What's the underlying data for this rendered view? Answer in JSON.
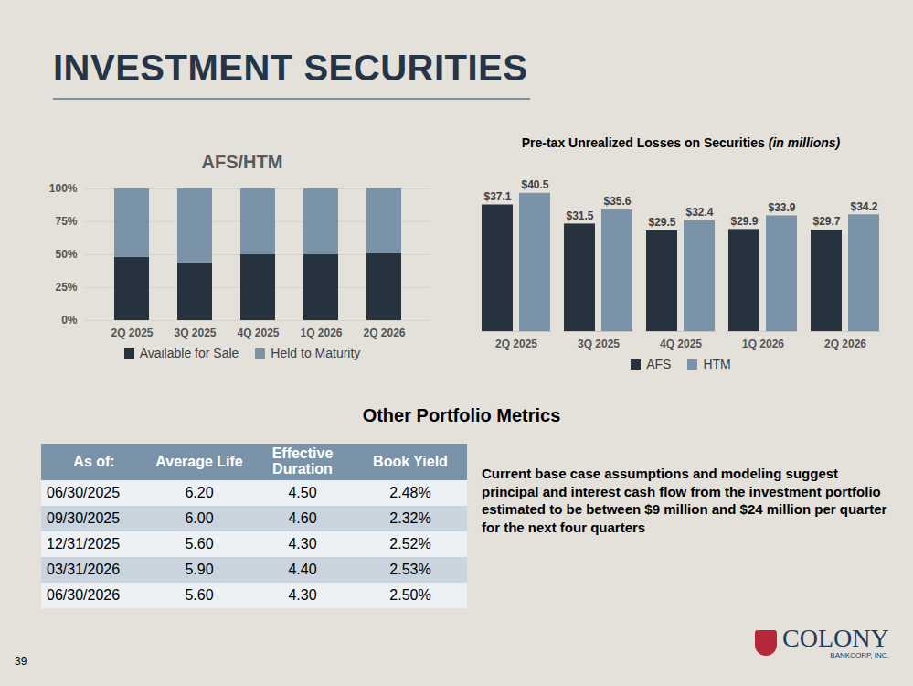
{
  "page": {
    "title": "INVESTMENT SECURITIES",
    "page_number": "39"
  },
  "chart_data": [
    {
      "type": "bar",
      "title": "AFS/HTM",
      "stacked": true,
      "grid": true,
      "legend": "bottom",
      "categories": [
        "2Q 2025",
        "3Q 2025",
        "4Q 2025",
        "1Q 2026",
        "2Q 2026"
      ],
      "series": [
        {
          "name": "Available for Sale",
          "color": "#26333f",
          "values": [
            48,
            44,
            50,
            50,
            51
          ]
        },
        {
          "name": "Held to Maturity",
          "color": "#7b93a8",
          "values": [
            52,
            56,
            50,
            50,
            49
          ]
        }
      ],
      "ylim": [
        0,
        100
      ],
      "yticks": [
        {
          "value": 0,
          "label": "0%"
        },
        {
          "value": 25,
          "label": "25%"
        },
        {
          "value": 50,
          "label": "50%"
        },
        {
          "value": 75,
          "label": "75%"
        },
        {
          "value": 100,
          "label": "100%"
        }
      ]
    },
    {
      "type": "bar",
      "title": "Pre-tax Unrealized Losses on Securities",
      "subtitle": "(in millions)",
      "legend": "bottom",
      "data_labels": true,
      "tick_labels": "x",
      "categories": [
        "2Q 2025",
        "3Q 2025",
        "4Q 2025",
        "1Q 2026",
        "2Q 2026"
      ],
      "series": [
        {
          "name": "AFS",
          "color": "#26333f",
          "values": [
            37.1,
            31.5,
            29.5,
            29.9,
            29.7
          ],
          "value_labels": [
            "$37.1",
            "$31.5",
            "$29.5",
            "$29.9",
            "$29.7"
          ]
        },
        {
          "name": "HTM",
          "color": "#7b93a8",
          "values": [
            40.5,
            35.6,
            32.4,
            33.9,
            34.2
          ],
          "value_labels": [
            "$40.5",
            "$35.6",
            "$32.4",
            "$33.9",
            "$34.2"
          ]
        }
      ],
      "ylim": [
        0,
        45
      ]
    }
  ],
  "table": {
    "title": "Other Portfolio Metrics",
    "columns": [
      "As of:",
      "Average Life",
      "Effective Duration",
      "Book Yield"
    ],
    "rows": [
      [
        "06/30/2025",
        "6.20",
        "4.50",
        "2.48%"
      ],
      [
        "09/30/2025",
        "6.00",
        "4.60",
        "2.32%"
      ],
      [
        "12/31/2025",
        "5.60",
        "4.30",
        "2.52%"
      ],
      [
        "03/31/2026",
        "5.90",
        "4.40",
        "2.53%"
      ],
      [
        "06/30/2026",
        "5.60",
        "4.30",
        "2.50%"
      ]
    ]
  },
  "note": "Current base case assumptions and modeling suggest principal and interest cash flow from the investment portfolio estimated to be between $9 million and $24 million per quarter for the next four quarters",
  "logo": {
    "name": "COLONY",
    "subtitle": "BANKCORP, INC."
  }
}
